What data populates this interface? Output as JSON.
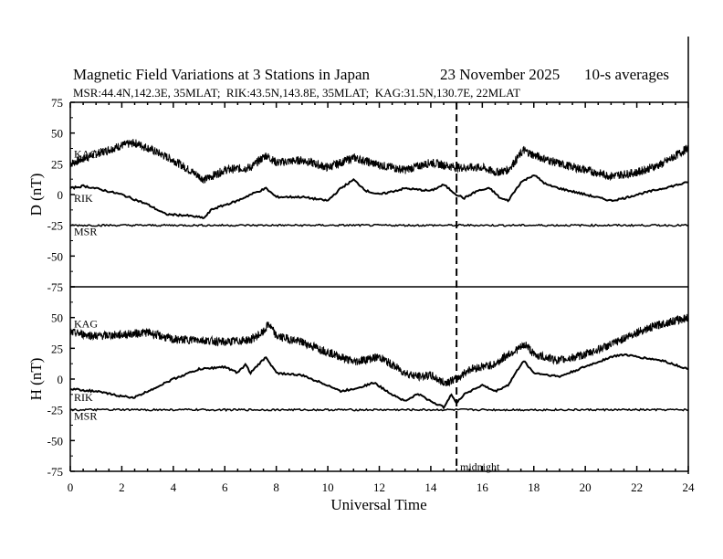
{
  "chart_data": {
    "type": "line",
    "title": "Magnetic Field Variations at 3 Stations in Japan",
    "date": "23 November 2025",
    "averaging": "10-s averages",
    "subtitle": "MSR:44.4N,142.3E, 35MLAT;  RIK:43.5N,143.8E, 35MLAT;  KAG:31.5N,130.7E, 22MLAT",
    "xlabel": "Universal Time",
    "xlim": [
      0,
      24
    ],
    "xticks": [
      0,
      2,
      4,
      6,
      8,
      10,
      12,
      14,
      16,
      18,
      20,
      22,
      24
    ],
    "annotation": {
      "x": 15,
      "label": "midnight"
    },
    "colors": {
      "line": "#000000",
      "background": "#ffffff"
    },
    "panels": [
      {
        "ylabel": "D (nT)",
        "ylim": [
          -75,
          75
        ],
        "yticks": [
          75,
          50,
          25,
          0,
          -25,
          -50,
          -75
        ],
        "station_labels": [
          "KAG",
          "RIK",
          "MSR"
        ],
        "series": [
          {
            "name": "KAG",
            "noisy": true,
            "x": [
              0,
              1,
              2,
              2.5,
              3,
              4,
              5,
              5.2,
              6,
              7,
              7.6,
              8,
              9,
              10,
              11,
              12,
              13,
              14,
              15,
              16,
              16.5,
              17,
              17.6,
              18,
              19,
              20,
              21,
              22,
              23,
              24
            ],
            "y": [
              25,
              33,
              40,
              42,
              38,
              28,
              15,
              12,
              20,
              22,
              32,
              26,
              28,
              22,
              30,
              24,
              20,
              26,
              22,
              22,
              18,
              20,
              36,
              32,
              25,
              20,
              15,
              18,
              25,
              38
            ]
          },
          {
            "name": "RIK",
            "noisy": false,
            "x": [
              0,
              0.5,
              1,
              2,
              3,
              3.7,
              4.5,
              5.2,
              5.5,
              6.5,
              7,
              7.6,
              8,
              9,
              10,
              10.5,
              11,
              11.5,
              12,
              13,
              14,
              14.5,
              15,
              15.3,
              15.8,
              16.3,
              16.7,
              17,
              17.5,
              18,
              18.5,
              19,
              20,
              21,
              21.5,
              22,
              23,
              24
            ],
            "y": [
              5,
              7,
              5,
              0,
              -8,
              -16,
              -17,
              -19,
              -12,
              -5,
              0,
              5,
              -2,
              -2,
              -5,
              5,
              12,
              3,
              0,
              5,
              3,
              8,
              0,
              -3,
              3,
              5,
              -3,
              -5,
              10,
              16,
              8,
              5,
              0,
              -5,
              -3,
              0,
              5,
              10
            ]
          },
          {
            "name": "MSR",
            "noisy": false,
            "x": [
              0,
              24
            ],
            "y": [
              -25,
              -25
            ]
          }
        ]
      },
      {
        "ylabel": "H (nT)",
        "ylim": [
          -75,
          75
        ],
        "yticks": [
          75,
          50,
          25,
          0,
          -25,
          -50,
          -75
        ],
        "station_labels": [
          "KAG",
          "RIK",
          "MSR"
        ],
        "series": [
          {
            "name": "KAG",
            "noisy": true,
            "x": [
              0,
              1,
              2,
              3,
              4,
              5,
              6,
              7,
              7.5,
              7.7,
              8,
              9,
              10,
              11,
              12,
              13,
              13.5,
              14,
              14.5,
              15,
              15.5,
              16,
              16.5,
              17,
              17.7,
              18,
              19,
              20,
              21,
              22,
              23,
              24
            ],
            "y": [
              38,
              35,
              36,
              38,
              32,
              32,
              30,
              32,
              38,
              45,
              35,
              30,
              22,
              14,
              18,
              5,
              2,
              3,
              -3,
              0,
              8,
              10,
              12,
              20,
              28,
              20,
              15,
              20,
              28,
              38,
              45,
              50
            ]
          },
          {
            "name": "RIK",
            "noisy": false,
            "x": [
              0,
              1,
              2,
              2.5,
              3,
              4,
              5,
              6,
              6.5,
              6.8,
              7,
              7.6,
              8,
              9,
              10,
              10.5,
              11,
              11.8,
              12.3,
              13,
              13.5,
              14,
              14.5,
              14.8,
              15,
              15.3,
              16,
              16.5,
              17,
              17.6,
              18,
              19,
              20,
              21,
              21.5,
              22,
              23,
              24
            ],
            "y": [
              -8,
              -10,
              -14,
              -15,
              -10,
              0,
              8,
              10,
              5,
              12,
              5,
              18,
              5,
              3,
              -5,
              -10,
              -8,
              -3,
              -10,
              -18,
              -12,
              -18,
              -23,
              -12,
              -20,
              -12,
              -5,
              -10,
              -5,
              15,
              5,
              2,
              10,
              18,
              20,
              18,
              15,
              8
            ]
          },
          {
            "name": "MSR",
            "noisy": false,
            "x": [
              0,
              24
            ],
            "y": [
              -25,
              -25
            ]
          }
        ]
      }
    ]
  }
}
